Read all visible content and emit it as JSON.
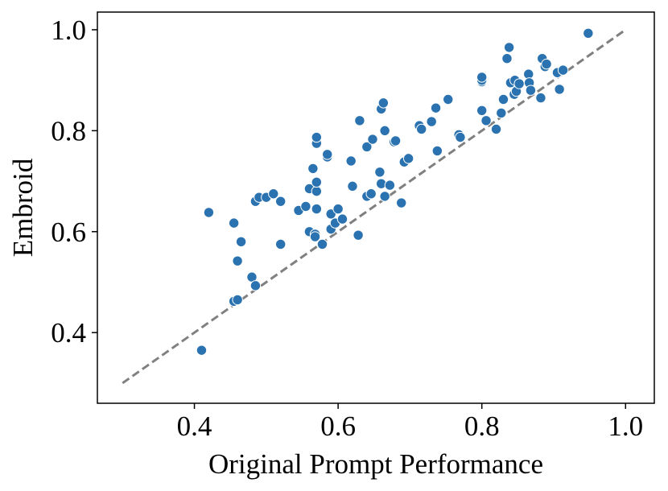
{
  "chart_data": {
    "type": "scatter",
    "xlabel": "Original Prompt Performance",
    "ylabel": "Embroid",
    "xlim": [
      0.265,
      1.04
    ],
    "ylim": [
      0.26,
      1.035
    ],
    "xticks": [
      0.4,
      0.6,
      0.8,
      1.0
    ],
    "yticks": [
      0.4,
      0.6,
      0.8,
      1.0
    ],
    "xtick_labels": [
      "0.4",
      "0.6",
      "0.8",
      "1.0"
    ],
    "ytick_labels": [
      "0.4",
      "0.6",
      "0.8",
      "1.0"
    ],
    "grid": false,
    "marker_color": "#2a72b0",
    "reference_line": {
      "x": [
        0.3,
        1.0
      ],
      "y": [
        0.3,
        1.0
      ],
      "style": "dashed",
      "color": "#808080"
    },
    "points": [
      [
        0.41,
        0.365
      ],
      [
        0.42,
        0.638
      ],
      [
        0.455,
        0.617
      ],
      [
        0.455,
        0.462
      ],
      [
        0.46,
        0.465
      ],
      [
        0.46,
        0.542
      ],
      [
        0.465,
        0.58
      ],
      [
        0.48,
        0.51
      ],
      [
        0.485,
        0.66
      ],
      [
        0.485,
        0.493
      ],
      [
        0.49,
        0.668
      ],
      [
        0.5,
        0.668
      ],
      [
        0.51,
        0.675
      ],
      [
        0.52,
        0.66
      ],
      [
        0.52,
        0.575
      ],
      [
        0.545,
        0.642
      ],
      [
        0.555,
        0.65
      ],
      [
        0.56,
        0.685
      ],
      [
        0.56,
        0.6
      ],
      [
        0.565,
        0.725
      ],
      [
        0.568,
        0.595
      ],
      [
        0.568,
        0.59
      ],
      [
        0.57,
        0.68
      ],
      [
        0.57,
        0.698
      ],
      [
        0.57,
        0.645
      ],
      [
        0.57,
        0.775
      ],
      [
        0.57,
        0.787
      ],
      [
        0.578,
        0.575
      ],
      [
        0.585,
        0.748
      ],
      [
        0.585,
        0.753
      ],
      [
        0.59,
        0.605
      ],
      [
        0.59,
        0.635
      ],
      [
        0.596,
        0.617
      ],
      [
        0.6,
        0.645
      ],
      [
        0.606,
        0.625
      ],
      [
        0.618,
        0.74
      ],
      [
        0.62,
        0.69
      ],
      [
        0.628,
        0.593
      ],
      [
        0.63,
        0.82
      ],
      [
        0.64,
        0.67
      ],
      [
        0.64,
        0.768
      ],
      [
        0.646,
        0.675
      ],
      [
        0.648,
        0.783
      ],
      [
        0.658,
        0.718
      ],
      [
        0.66,
        0.695
      ],
      [
        0.66,
        0.843
      ],
      [
        0.663,
        0.855
      ],
      [
        0.665,
        0.8
      ],
      [
        0.665,
        0.67
      ],
      [
        0.672,
        0.692
      ],
      [
        0.678,
        0.778
      ],
      [
        0.68,
        0.78
      ],
      [
        0.688,
        0.657
      ],
      [
        0.692,
        0.738
      ],
      [
        0.698,
        0.745
      ],
      [
        0.713,
        0.81
      ],
      [
        0.716,
        0.803
      ],
      [
        0.73,
        0.818
      ],
      [
        0.736,
        0.845
      ],
      [
        0.738,
        0.76
      ],
      [
        0.753,
        0.862
      ],
      [
        0.768,
        0.792
      ],
      [
        0.77,
        0.787
      ],
      [
        0.8,
        0.84
      ],
      [
        0.8,
        0.897
      ],
      [
        0.8,
        0.9
      ],
      [
        0.8,
        0.906
      ],
      [
        0.806,
        0.82
      ],
      [
        0.82,
        0.803
      ],
      [
        0.827,
        0.835
      ],
      [
        0.83,
        0.862
      ],
      [
        0.835,
        0.943
      ],
      [
        0.838,
        0.965
      ],
      [
        0.84,
        0.895
      ],
      [
        0.845,
        0.872
      ],
      [
        0.846,
        0.9
      ],
      [
        0.848,
        0.878
      ],
      [
        0.852,
        0.893
      ],
      [
        0.865,
        0.912
      ],
      [
        0.866,
        0.895
      ],
      [
        0.868,
        0.88
      ],
      [
        0.882,
        0.865
      ],
      [
        0.884,
        0.943
      ],
      [
        0.888,
        0.927
      ],
      [
        0.89,
        0.932
      ],
      [
        0.905,
        0.915
      ],
      [
        0.908,
        0.882
      ],
      [
        0.913,
        0.92
      ],
      [
        0.948,
        0.993
      ]
    ]
  }
}
